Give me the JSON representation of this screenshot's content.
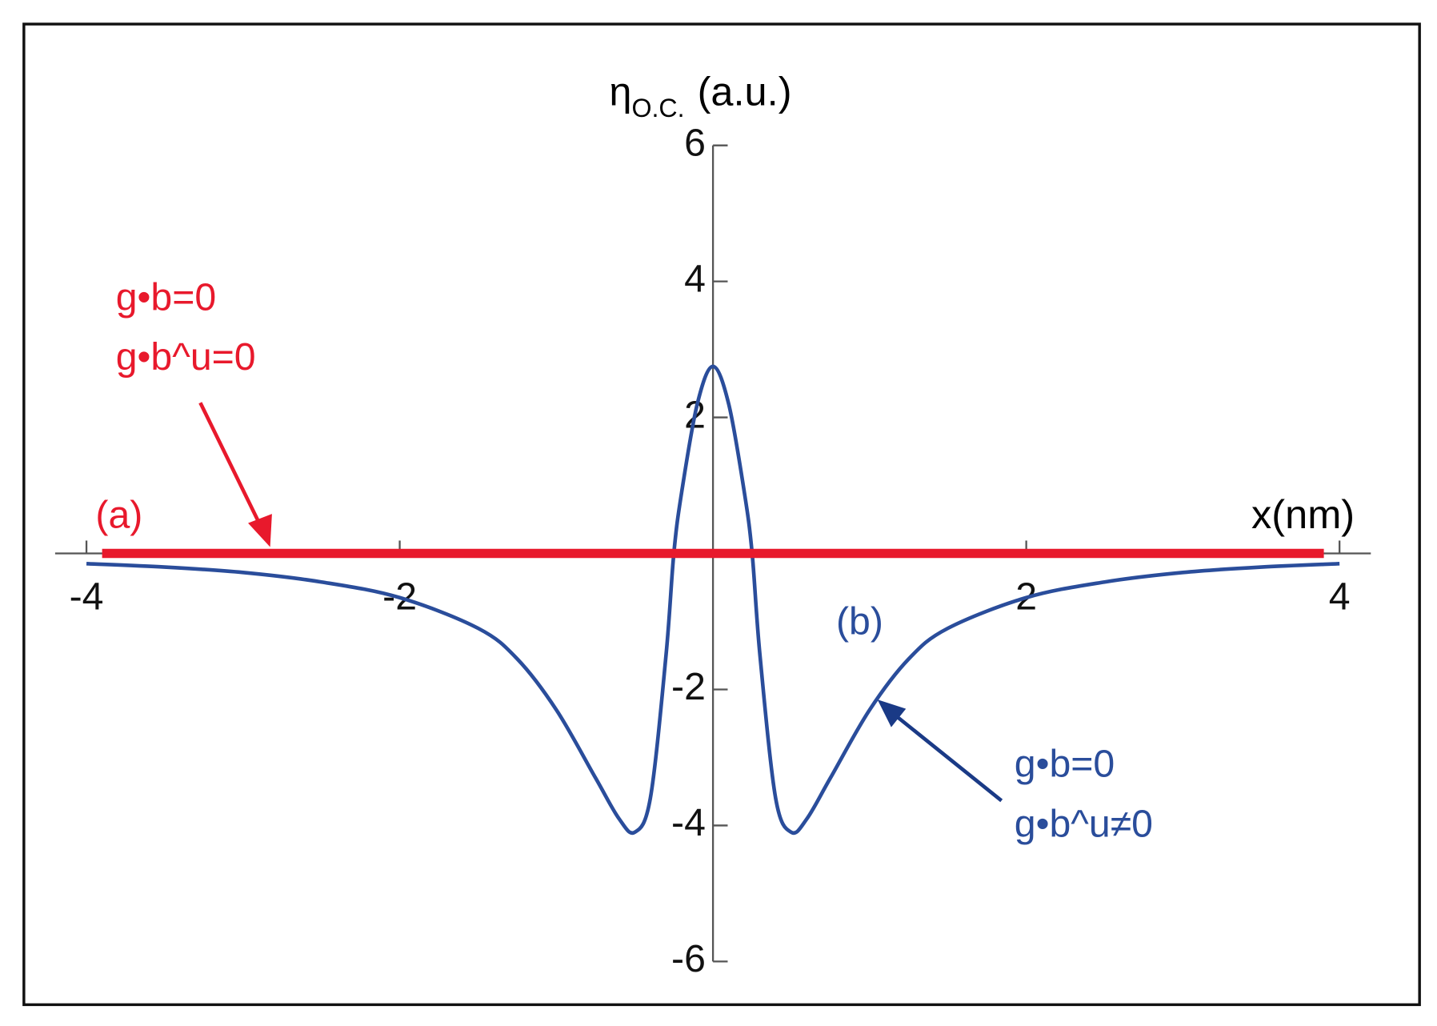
{
  "chart_data": {
    "type": "line",
    "xlabel": "x(nm)",
    "ylabel": {
      "symbol": "η",
      "subscript": "O.C.",
      "unit": "(a.u.)"
    },
    "xlim": [
      -4.2,
      4.2
    ],
    "ylim": [
      -6,
      6
    ],
    "xticks": [
      -4,
      -2,
      2,
      4
    ],
    "yticks": [
      -6,
      -4,
      -2,
      2,
      4,
      6
    ],
    "series": [
      {
        "name": "(a)",
        "color": "#e8192c",
        "x": [
          -3.9,
          3.9
        ],
        "values": [
          0,
          0
        ]
      },
      {
        "name": "(b)",
        "color": "#2a4d9b",
        "x": [
          -4,
          -3.5,
          -3,
          -2.5,
          -2,
          -1.5,
          -1.25,
          -1,
          -0.75,
          -0.6,
          -0.5,
          -0.4,
          -0.3,
          -0.25,
          -0.2,
          -0.1,
          0,
          0.1,
          0.2,
          0.25,
          0.3,
          0.4,
          0.5,
          0.6,
          0.75,
          1,
          1.25,
          1.5,
          2,
          2.5,
          3,
          3.5,
          4
        ],
        "values": [
          -0.15,
          -0.2,
          -0.28,
          -0.42,
          -0.65,
          -1.1,
          -1.55,
          -2.3,
          -3.3,
          -3.9,
          -4.1,
          -3.6,
          -1.5,
          0,
          0.9,
          2.2,
          2.75,
          2.2,
          0.9,
          0,
          -1.5,
          -3.6,
          -4.1,
          -3.9,
          -3.3,
          -2.3,
          -1.55,
          -1.1,
          -0.65,
          -0.42,
          -0.28,
          -0.2,
          -0.15
        ]
      }
    ],
    "annotations": {
      "a_line1": "g•b=0",
      "a_line2": "g•b^u=0",
      "b_line1": "g•b=0",
      "b_line2": "g•b^u≠0"
    }
  }
}
